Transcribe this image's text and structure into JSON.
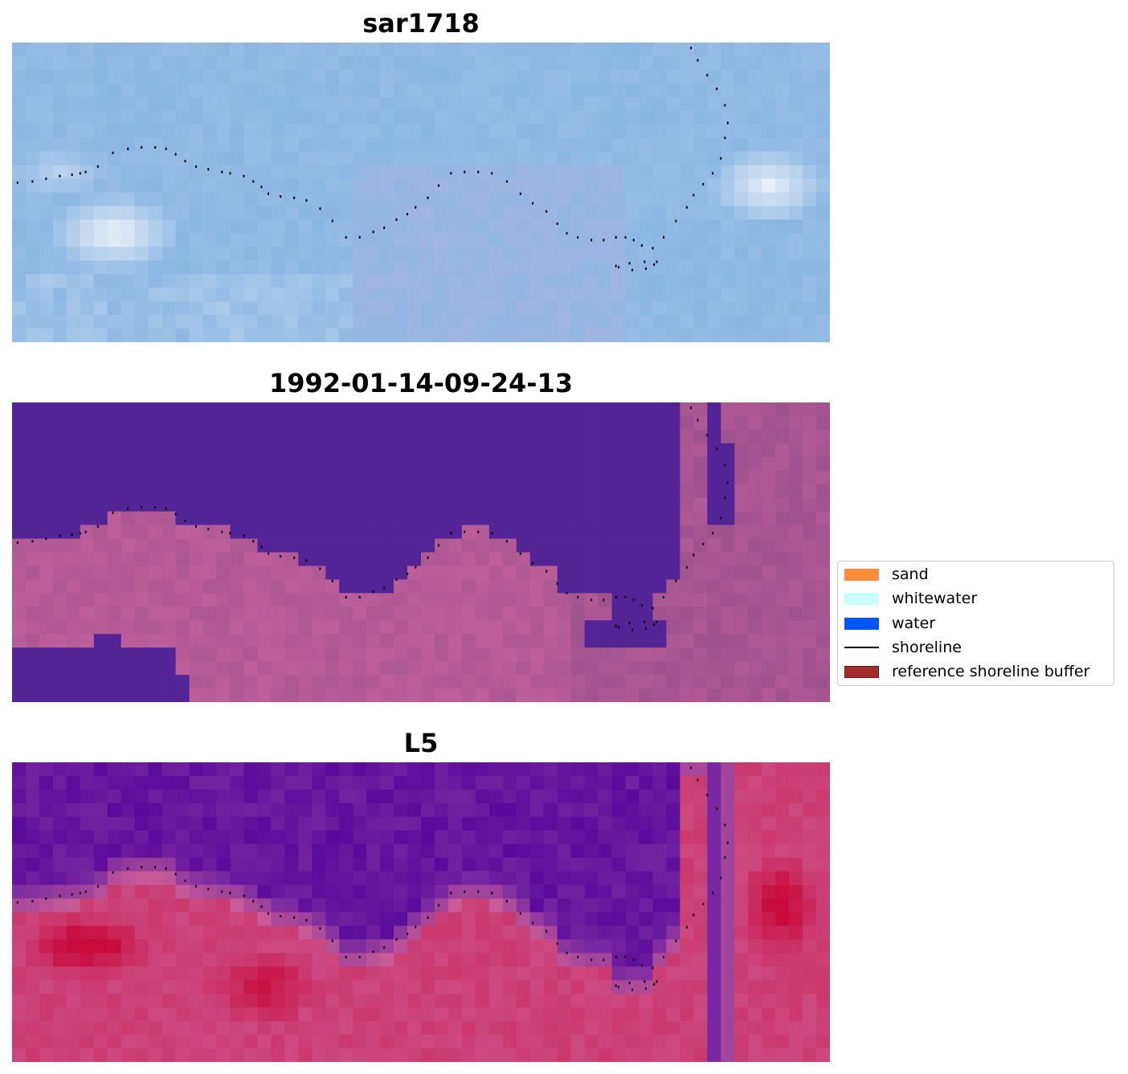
{
  "panels": [
    {
      "title": "sar1718",
      "style": "rgb"
    },
    {
      "title": "1992-01-14-09-24-13",
      "style": "classified"
    },
    {
      "title": "L5",
      "style": "index"
    }
  ],
  "legend": {
    "items": [
      {
        "label": "sand",
        "kind": "patch",
        "color": "#ff8c3a"
      },
      {
        "label": "whitewater",
        "kind": "patch",
        "color": "#c8ffff"
      },
      {
        "label": "water",
        "kind": "patch",
        "color": "#0055ff"
      },
      {
        "label": "shoreline",
        "kind": "line",
        "color": "#000000"
      },
      {
        "label": "reference shoreline buffer",
        "kind": "patch",
        "color": "#a12c2c",
        "edge": "#7a1010"
      }
    ]
  },
  "colors": {
    "classified_water": "#532496",
    "index_low": "#5a0a9c",
    "index_high": "#c8093a",
    "rgb_sky": "#86b8e4",
    "rgb_white": "#f3f6fa",
    "shoreline_dots": "#000000"
  }
}
